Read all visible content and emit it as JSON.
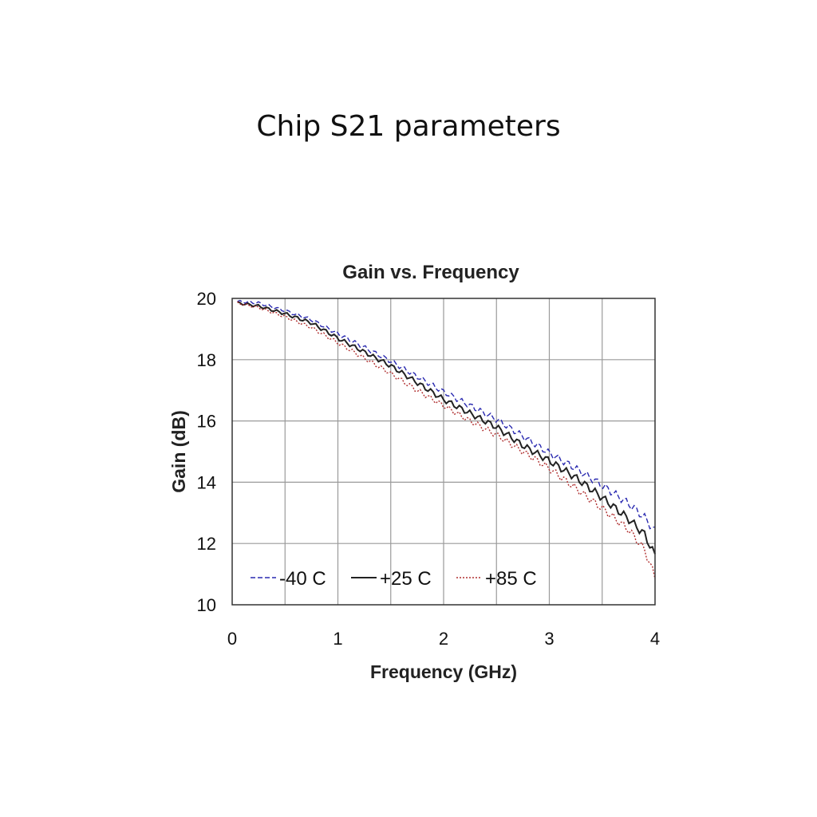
{
  "page": {
    "title": "Chip S21 parameters"
  },
  "chart_data": {
    "type": "line",
    "title": "Gain vs. Frequency",
    "xlabel": "Frequency (GHz)",
    "ylabel": "Gain (dB)",
    "xlim": [
      0,
      4
    ],
    "ylim": [
      10,
      20
    ],
    "xticks": [
      0,
      1,
      2,
      3,
      4
    ],
    "yticks": [
      10,
      12,
      14,
      16,
      18,
      20
    ],
    "grid": true,
    "legend_position": "bottom-left",
    "x": [
      0.05,
      0.25,
      0.5,
      0.75,
      1.0,
      1.25,
      1.5,
      1.75,
      2.0,
      2.25,
      2.5,
      2.75,
      3.0,
      3.25,
      3.5,
      3.75,
      3.9,
      4.0
    ],
    "series": [
      {
        "name": "-40 C",
        "color": "#2a2ab0",
        "dash": "dashed",
        "values": [
          19.9,
          19.85,
          19.6,
          19.3,
          18.85,
          18.4,
          17.95,
          17.45,
          16.95,
          16.5,
          16.05,
          15.5,
          14.95,
          14.45,
          13.9,
          13.3,
          12.85,
          12.4
        ]
      },
      {
        "name": "+25 C",
        "color": "#222222",
        "dash": "solid",
        "values": [
          19.85,
          19.75,
          19.5,
          19.2,
          18.7,
          18.25,
          17.8,
          17.25,
          16.7,
          16.25,
          15.8,
          15.2,
          14.7,
          14.15,
          13.5,
          12.8,
          12.3,
          11.6
        ]
      },
      {
        "name": "+85 C",
        "color": "#b03030",
        "dash": "dotted",
        "values": [
          19.85,
          19.7,
          19.4,
          19.05,
          18.55,
          18.05,
          17.55,
          17.0,
          16.5,
          16.0,
          15.55,
          15.0,
          14.45,
          13.8,
          13.15,
          12.45,
          11.8,
          10.9
        ]
      }
    ]
  }
}
